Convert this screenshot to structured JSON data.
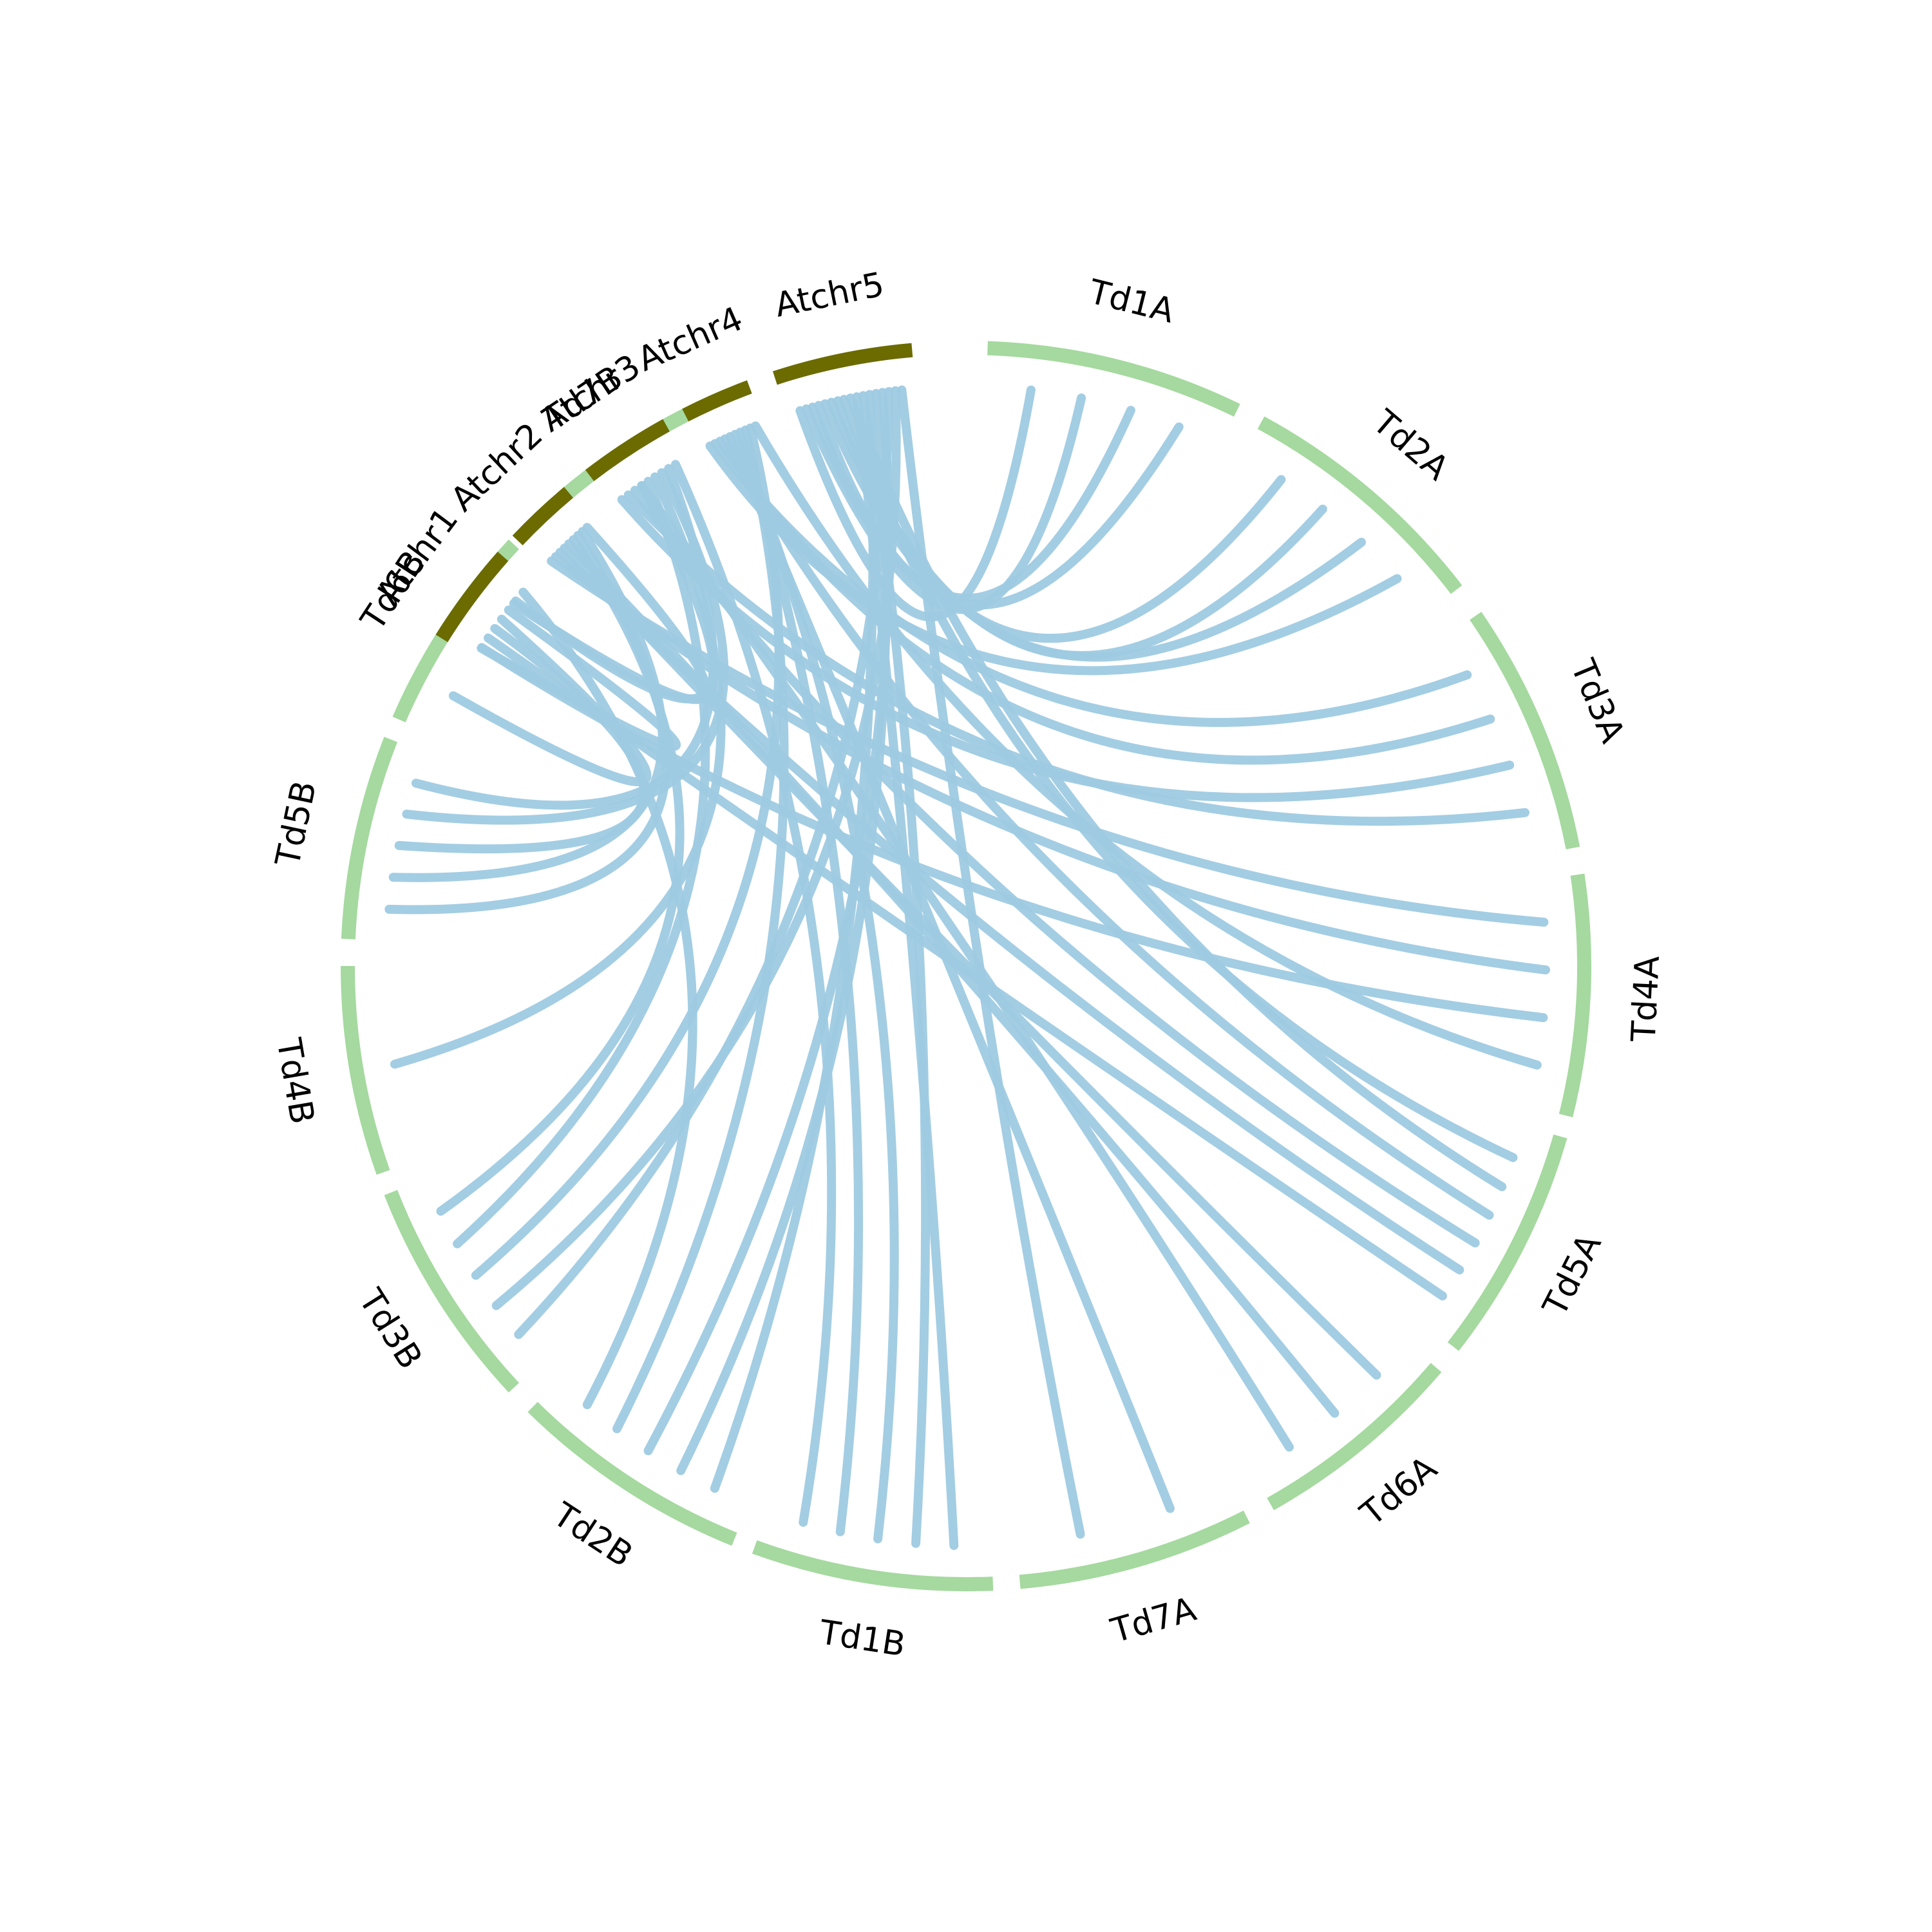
{
  "chart_data": {
    "type": "circos",
    "colors": {
      "target_genome": "#a5d99f",
      "reference_genome": "#6b6b00",
      "links": "#9ecae1",
      "labels": "#000000",
      "background": "#ffffff"
    },
    "chromosomes": [
      {
        "name": "Td1A",
        "group": "target",
        "start_deg": 2.0,
        "end_deg": 26.0
      },
      {
        "name": "Td2A",
        "group": "target",
        "start_deg": 28.5,
        "end_deg": 52.5
      },
      {
        "name": "Td3A",
        "group": "target",
        "start_deg": 55.5,
        "end_deg": 79.0
      },
      {
        "name": "Td4A",
        "group": "target",
        "start_deg": 81.5,
        "end_deg": 104.0
      },
      {
        "name": "Td5A",
        "group": "target",
        "start_deg": 106.0,
        "end_deg": 128.0
      },
      {
        "name": "Td6A",
        "group": "target",
        "start_deg": 130.5,
        "end_deg": 150.5
      },
      {
        "name": "Td7A",
        "group": "target",
        "start_deg": 153.0,
        "end_deg": 175.0
      },
      {
        "name": "Td1B",
        "group": "target",
        "start_deg": 177.5,
        "end_deg": 200.0
      },
      {
        "name": "Td2B",
        "group": "target",
        "start_deg": 202.0,
        "end_deg": 224.5
      },
      {
        "name": "Td3B",
        "group": "target",
        "start_deg": 227.0,
        "end_deg": 248.5
      },
      {
        "name": "Td4B",
        "group": "target",
        "start_deg": 250.5,
        "end_deg": 270.0
      },
      {
        "name": "Td5B",
        "group": "target",
        "start_deg": 272.5,
        "end_deg": 291.5
      },
      {
        "name": "Td6B",
        "group": "target",
        "start_deg": 293.5,
        "end_deg": 313.0
      },
      {
        "name": "Td7B",
        "group": "target",
        "start_deg": 315.0,
        "end_deg": 337.0
      },
      {
        "name": "Atchr1",
        "group": "reference",
        "start_deg": 340.0,
        "end_deg": 349.5
      },
      {
        "name": "Atchr2",
        "group": "reference",
        "start_deg": 351.5,
        "end_deg": 358.0
      },
      {
        "name": "Atchr3",
        "group": "reference",
        "start_deg": 0.5,
        "end_deg": 9.0
      },
      {
        "name": "Atchr4",
        "group": "reference",
        "start_deg": 11.0,
        "end_deg": 17.5
      },
      {
        "name": "Atchr5",
        "group": "reference",
        "start_deg": 20.0,
        "end_deg": 33.0
      }
    ],
    "links": [
      {
        "from": "Atchr5",
        "to": "Td1A"
      },
      {
        "from": "Atchr5",
        "to": "Td1A"
      },
      {
        "from": "Atchr5",
        "to": "Td1A"
      },
      {
        "from": "Atchr5",
        "to": "Td1A"
      },
      {
        "from": "Atchr5",
        "to": "Td2A"
      },
      {
        "from": "Atchr5",
        "to": "Td2A"
      },
      {
        "from": "Atchr5",
        "to": "Td2A"
      },
      {
        "from": "Atchr4",
        "to": "Td2A"
      },
      {
        "from": "Atchr4",
        "to": "Td3A"
      },
      {
        "from": "Atchr4",
        "to": "Td3A"
      },
      {
        "from": "Atchr3",
        "to": "Td3A"
      },
      {
        "from": "Atchr3",
        "to": "Td3A"
      },
      {
        "from": "Atchr2",
        "to": "Td4A"
      },
      {
        "from": "Atchr2",
        "to": "Td4A"
      },
      {
        "from": "Atchr1",
        "to": "Td4A"
      },
      {
        "from": "Atchr5",
        "to": "Td5A"
      },
      {
        "from": "Atchr5",
        "to": "Td5A"
      },
      {
        "from": "Atchr4",
        "to": "Td5A"
      },
      {
        "from": "Atchr3",
        "to": "Td5A"
      },
      {
        "from": "Atchr2",
        "to": "Td5A"
      },
      {
        "from": "Atchr1",
        "to": "Td5A"
      },
      {
        "from": "Atchr2",
        "to": "Td6A"
      },
      {
        "from": "Atchr2",
        "to": "Td6A"
      },
      {
        "from": "Atchr3",
        "to": "Td6A"
      },
      {
        "from": "Atchr4",
        "to": "Td7A"
      },
      {
        "from": "Atchr5",
        "to": "Td1B"
      },
      {
        "from": "Atchr5",
        "to": "Td1B"
      },
      {
        "from": "Atchr4",
        "to": "Td1B"
      },
      {
        "from": "Atchr4",
        "to": "Td1B"
      },
      {
        "from": "Atchr5",
        "to": "Td2B"
      },
      {
        "from": "Atchr5",
        "to": "Td2B"
      },
      {
        "from": "Atchr5",
        "to": "Td2B"
      },
      {
        "from": "Atchr4",
        "to": "Td2B"
      },
      {
        "from": "Atchr5",
        "to": "Td3B"
      },
      {
        "from": "Atchr5",
        "to": "Td3B"
      },
      {
        "from": "Atchr4",
        "to": "Td3B"
      },
      {
        "from": "Atchr3",
        "to": "Td3B"
      },
      {
        "from": "Atchr2",
        "to": "Td3B"
      },
      {
        "from": "Atchr3",
        "to": "Td4B"
      },
      {
        "from": "Atchr2",
        "to": "Td5B"
      },
      {
        "from": "Atchr2",
        "to": "Td5B"
      },
      {
        "from": "Atchr1",
        "to": "Td5B"
      },
      {
        "from": "Atchr3",
        "to": "Td5B"
      },
      {
        "from": "Atchr3",
        "to": "Td5B"
      },
      {
        "from": "Atchr1",
        "to": "Td6B"
      },
      {
        "from": "Atchr1",
        "to": "Td6B"
      },
      {
        "from": "Atchr2",
        "to": "Td6B"
      },
      {
        "from": "Atchr1",
        "to": "Td7B"
      },
      {
        "from": "Atchr5",
        "to": "Td7A"
      },
      {
        "from": "Atchr4",
        "to": "Td4A"
      },
      {
        "from": "Atchr3",
        "to": "Td1B"
      },
      {
        "from": "Atchr1",
        "to": "Td2B"
      }
    ]
  }
}
